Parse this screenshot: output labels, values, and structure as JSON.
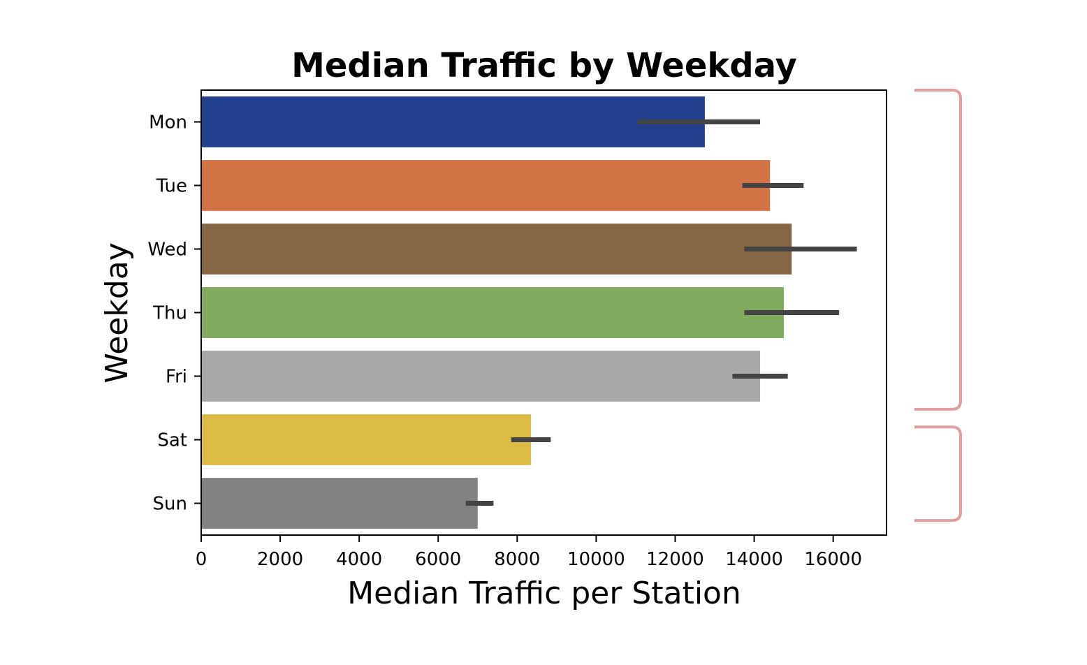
{
  "chart_data": {
    "type": "bar",
    "orientation": "horizontal",
    "title": "Median Traffic by Weekday",
    "xlabel": "Median Traffic per Station",
    "ylabel": "Weekday",
    "categories": [
      "Mon",
      "Tue",
      "Wed",
      "Thu",
      "Fri",
      "Sat",
      "Sun"
    ],
    "values": [
      12750,
      14400,
      14950,
      14750,
      14150,
      8350,
      7000
    ],
    "error_low": [
      11050,
      13700,
      13750,
      13750,
      13450,
      7850,
      6700
    ],
    "error_high": [
      14150,
      15250,
      16600,
      16150,
      14850,
      8850,
      7400
    ],
    "colors": [
      "#23408e",
      "#d17344",
      "#856746",
      "#80ab5f",
      "#a8a9aa",
      "#dcbc45",
      "#818283"
    ],
    "error_color": "#444444",
    "xlim": [
      0,
      17350
    ],
    "xticks": [
      0,
      2000,
      4000,
      6000,
      8000,
      10000,
      12000,
      14000,
      16000
    ],
    "grid": false,
    "annotations": [
      {
        "type": "bracket",
        "color": "#e0a0a0",
        "spans": [
          "Mon",
          "Fri"
        ]
      },
      {
        "type": "bracket",
        "color": "#e0a0a0",
        "spans": [
          "Sat",
          "Sun"
        ]
      }
    ]
  }
}
